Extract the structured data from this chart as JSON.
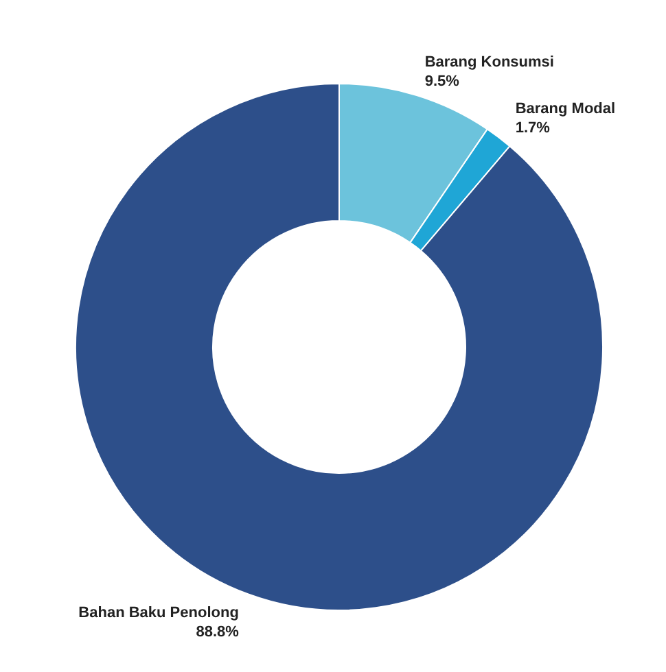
{
  "chart_data": {
    "type": "donut",
    "categories": [
      "Barang Konsumsi",
      "Barang Modal",
      "Bahan Baku Penolong"
    ],
    "values": [
      9.5,
      1.7,
      88.8
    ],
    "colors": [
      "#6cc3dc",
      "#1fa6d6",
      "#2d4f8a"
    ],
    "value_labels": [
      "9.5%",
      "1.7%",
      "88.8%"
    ],
    "legend": false
  }
}
